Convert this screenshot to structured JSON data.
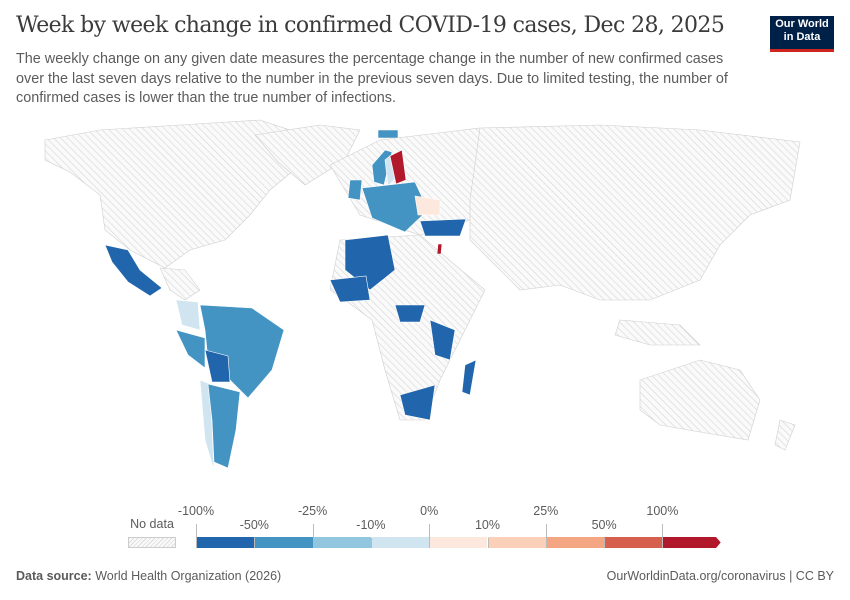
{
  "header": {
    "title": "Week by week change in confirmed COVID-19 cases, Dec 28, 2025",
    "subtitle": "The weekly change on any given date measures the percentage change in the number of new confirmed cases over the last seven days relative to the number in the previous seven days. Due to limited testing, the number of confirmed cases is lower than the true number of infections.",
    "logo_text": [
      "Our World",
      "in Data"
    ]
  },
  "chart_data": {
    "type": "choropleth",
    "title": "Week by week change in confirmed COVID-19 cases, Dec 28, 2025",
    "legend": {
      "no_data_label": "No data",
      "tick_labels_top": [
        "-100%",
        "-25%",
        "0%",
        "25%",
        "100%"
      ],
      "tick_labels_bottom": [
        "-50%",
        "-10%",
        "10%",
        "50%"
      ],
      "bins": [
        {
          "range": "-100% to -50%",
          "color": "#2166ac"
        },
        {
          "range": "-50% to -25%",
          "color": "#4393c3"
        },
        {
          "range": "-25% to -10%",
          "color": "#92c5de"
        },
        {
          "range": "-10% to 0%",
          "color": "#d1e5f0"
        },
        {
          "range": "0% to 10%",
          "color": "#fde8dd"
        },
        {
          "range": "10% to 25%",
          "color": "#fbd0b9"
        },
        {
          "range": "25% to 50%",
          "color": "#f4a582"
        },
        {
          "range": "50% to 100%",
          "color": "#d6604d"
        },
        {
          "range": ">100%",
          "color": "#b2182b"
        }
      ],
      "no_data_color": "#e6e6e6"
    },
    "countries": [
      {
        "name": "Mexico",
        "bin": 0
      },
      {
        "name": "Colombia",
        "bin": 3
      },
      {
        "name": "Venezuela",
        "bin": 0
      },
      {
        "name": "Peru",
        "bin": 1
      },
      {
        "name": "Brazil",
        "bin": 1
      },
      {
        "name": "Bolivia",
        "bin": 0
      },
      {
        "name": "Chile",
        "bin": 3
      },
      {
        "name": "Argentina",
        "bin": 1
      },
      {
        "name": "Iceland",
        "bin": 1
      },
      {
        "name": "United Kingdom",
        "bin": 1
      },
      {
        "name": "Norway",
        "bin": 1
      },
      {
        "name": "Sweden",
        "bin": 3
      },
      {
        "name": "Finland",
        "bin": 8
      },
      {
        "name": "Western Europe",
        "bin": 1
      },
      {
        "name": "Romania",
        "bin": 4
      },
      {
        "name": "Turkey",
        "bin": 0
      },
      {
        "name": "Israel",
        "bin": 8
      },
      {
        "name": "Algeria",
        "bin": 0
      },
      {
        "name": "Mali",
        "bin": 0
      },
      {
        "name": "Cameroon",
        "bin": 0
      },
      {
        "name": "Tanzania",
        "bin": 0
      },
      {
        "name": "South Africa",
        "bin": 0
      },
      {
        "name": "Madagascar",
        "bin": 0
      }
    ]
  },
  "footer": {
    "source_label": "Data source:",
    "source_value": "World Health Organization (2026)",
    "link": "OurWorldinData.org/coronavirus | CC BY"
  }
}
